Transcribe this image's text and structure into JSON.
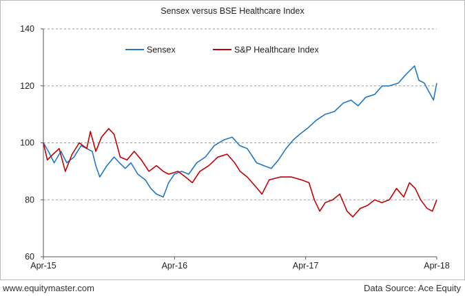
{
  "chart_data": {
    "type": "line",
    "title": "Sensex versus BSE Healthcare Index",
    "xlabel": "",
    "ylabel": "",
    "x_tick_labels": [
      "Apr-15",
      "Apr-16",
      "Apr-17",
      "Apr-18"
    ],
    "y_ticks": [
      60,
      80,
      100,
      120,
      140
    ],
    "ylim": [
      60,
      140
    ],
    "x_range": [
      "2015-04-01",
      "2018-04-01"
    ],
    "grid": "horizontal dashed",
    "legend_position": "top-left",
    "series": [
      {
        "name": "Sensex",
        "color": "#1f77c4",
        "points": [
          [
            "2015-04-01",
            100
          ],
          [
            "2015-04-15",
            97
          ],
          [
            "2015-05-01",
            93
          ],
          [
            "2015-05-20",
            97
          ],
          [
            "2015-06-05",
            93
          ],
          [
            "2015-06-25",
            95
          ],
          [
            "2015-07-15",
            99
          ],
          [
            "2015-07-31",
            98
          ],
          [
            "2015-08-15",
            97
          ],
          [
            "2015-08-25",
            92
          ],
          [
            "2015-09-05",
            88
          ],
          [
            "2015-09-25",
            92
          ],
          [
            "2015-10-15",
            95
          ],
          [
            "2015-10-30",
            93
          ],
          [
            "2015-11-15",
            91
          ],
          [
            "2015-12-01",
            93
          ],
          [
            "2015-12-20",
            89
          ],
          [
            "2016-01-10",
            87
          ],
          [
            "2016-01-25",
            84
          ],
          [
            "2016-02-10",
            82
          ],
          [
            "2016-02-29",
            81
          ],
          [
            "2016-03-15",
            86
          ],
          [
            "2016-03-31",
            89
          ],
          [
            "2016-04-20",
            90
          ],
          [
            "2016-05-10",
            89
          ],
          [
            "2016-06-01",
            93
          ],
          [
            "2016-06-25",
            95
          ],
          [
            "2016-07-20",
            99
          ],
          [
            "2016-08-15",
            101
          ],
          [
            "2016-09-08",
            102
          ],
          [
            "2016-09-29",
            99
          ],
          [
            "2016-10-20",
            98
          ],
          [
            "2016-11-15",
            93
          ],
          [
            "2016-12-05",
            92
          ],
          [
            "2016-12-26",
            91
          ],
          [
            "2017-01-15",
            94
          ],
          [
            "2017-02-05",
            98
          ],
          [
            "2017-02-25",
            101
          ],
          [
            "2017-03-15",
            103
          ],
          [
            "2017-04-05",
            105
          ],
          [
            "2017-05-01",
            108
          ],
          [
            "2017-05-25",
            110
          ],
          [
            "2017-06-20",
            111
          ],
          [
            "2017-07-15",
            114
          ],
          [
            "2017-08-05",
            115
          ],
          [
            "2017-08-25",
            113
          ],
          [
            "2017-09-15",
            116
          ],
          [
            "2017-10-10",
            117
          ],
          [
            "2017-10-31",
            120
          ],
          [
            "2017-11-20",
            120
          ],
          [
            "2017-12-15",
            121
          ],
          [
            "2018-01-05",
            124
          ],
          [
            "2018-01-29",
            127
          ],
          [
            "2018-02-10",
            122
          ],
          [
            "2018-02-25",
            121
          ],
          [
            "2018-03-10",
            118
          ],
          [
            "2018-03-23",
            115
          ],
          [
            "2018-04-01",
            121
          ]
        ]
      },
      {
        "name": "S&P Healthcare Index",
        "color": "#c00000",
        "points": [
          [
            "2015-04-01",
            100
          ],
          [
            "2015-04-12",
            94
          ],
          [
            "2015-04-28",
            96
          ],
          [
            "2015-05-15",
            98
          ],
          [
            "2015-06-01",
            90
          ],
          [
            "2015-06-20",
            96
          ],
          [
            "2015-07-10",
            100
          ],
          [
            "2015-07-31",
            98
          ],
          [
            "2015-08-10",
            104
          ],
          [
            "2015-08-25",
            97
          ],
          [
            "2015-09-10",
            102
          ],
          [
            "2015-09-30",
            105
          ],
          [
            "2015-10-15",
            103
          ],
          [
            "2015-11-01",
            95
          ],
          [
            "2015-11-20",
            94
          ],
          [
            "2015-12-10",
            97
          ],
          [
            "2015-12-30",
            94
          ],
          [
            "2016-01-20",
            90
          ],
          [
            "2016-02-10",
            92
          ],
          [
            "2016-02-29",
            90
          ],
          [
            "2016-03-15",
            89
          ],
          [
            "2016-04-10",
            90
          ],
          [
            "2016-05-01",
            88
          ],
          [
            "2016-05-20",
            86
          ],
          [
            "2016-06-10",
            90
          ],
          [
            "2016-07-05",
            92
          ],
          [
            "2016-07-30",
            95
          ],
          [
            "2016-08-25",
            96
          ],
          [
            "2016-09-15",
            93
          ],
          [
            "2016-09-30",
            90
          ],
          [
            "2016-10-20",
            88
          ],
          [
            "2016-11-10",
            85
          ],
          [
            "2016-11-30",
            82
          ],
          [
            "2016-12-20",
            87
          ],
          [
            "2017-01-20",
            88
          ],
          [
            "2017-02-20",
            88
          ],
          [
            "2017-03-20",
            87
          ],
          [
            "2017-04-10",
            86
          ],
          [
            "2017-04-25",
            80
          ],
          [
            "2017-05-10",
            76
          ],
          [
            "2017-05-25",
            79
          ],
          [
            "2017-06-15",
            80
          ],
          [
            "2017-07-05",
            82
          ],
          [
            "2017-07-25",
            76
          ],
          [
            "2017-08-10",
            74
          ],
          [
            "2017-08-31",
            77
          ],
          [
            "2017-09-20",
            78
          ],
          [
            "2017-10-10",
            80
          ],
          [
            "2017-10-30",
            79
          ],
          [
            "2017-11-20",
            80
          ],
          [
            "2017-12-10",
            84
          ],
          [
            "2017-12-30",
            81
          ],
          [
            "2018-01-15",
            86
          ],
          [
            "2018-01-31",
            84
          ],
          [
            "2018-02-15",
            80
          ],
          [
            "2018-03-05",
            77
          ],
          [
            "2018-03-20",
            76
          ],
          [
            "2018-04-01",
            80
          ]
        ]
      }
    ]
  },
  "footer": {
    "website": "www.equitymaster.com",
    "source": "Data Source: Ace Equity"
  }
}
